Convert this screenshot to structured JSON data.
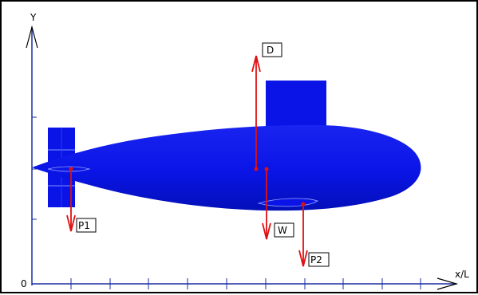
{
  "axes": {
    "y_label": "Y",
    "x_label": "x/L",
    "origin_label": "0"
  },
  "forces": {
    "D": "D",
    "W": "W",
    "P1": "P1",
    "P2": "P2"
  },
  "colors": {
    "hull": "#0a14e6",
    "hull_dark": "#0010b0",
    "arrows": "#e01010",
    "axis": "#1a2fa0"
  }
}
